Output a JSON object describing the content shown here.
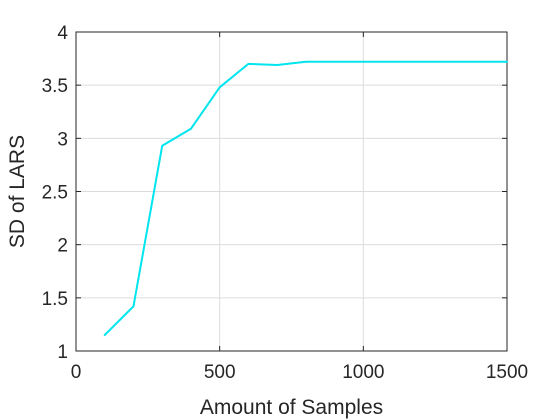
{
  "chart_data": {
    "type": "line",
    "title": "",
    "xlabel": "Amount of Samples",
    "ylabel": "SD of LARS",
    "xlim": [
      0,
      1500
    ],
    "ylim": [
      1,
      4
    ],
    "xticks": [
      0,
      500,
      1000,
      1500
    ],
    "yticks": [
      1,
      1.5,
      2,
      2.5,
      3,
      3.5,
      4
    ],
    "xtick_labels": [
      "0",
      "500",
      "1000",
      "1500"
    ],
    "ytick_labels": [
      "1",
      "1.5",
      "2",
      "2.5",
      "3",
      "3.5",
      "4"
    ],
    "grid": true,
    "legend": "none",
    "series": [
      {
        "color": "#00e5ee",
        "x": [
          100,
          200,
          300,
          400,
          500,
          600,
          700,
          800,
          900,
          1000,
          1100,
          1200,
          1300,
          1400,
          1500
        ],
        "y": [
          1.15,
          1.42,
          2.93,
          3.09,
          3.48,
          3.7,
          3.69,
          3.72,
          3.72,
          3.72,
          3.72,
          3.72,
          3.72,
          3.72,
          3.72
        ]
      }
    ]
  }
}
